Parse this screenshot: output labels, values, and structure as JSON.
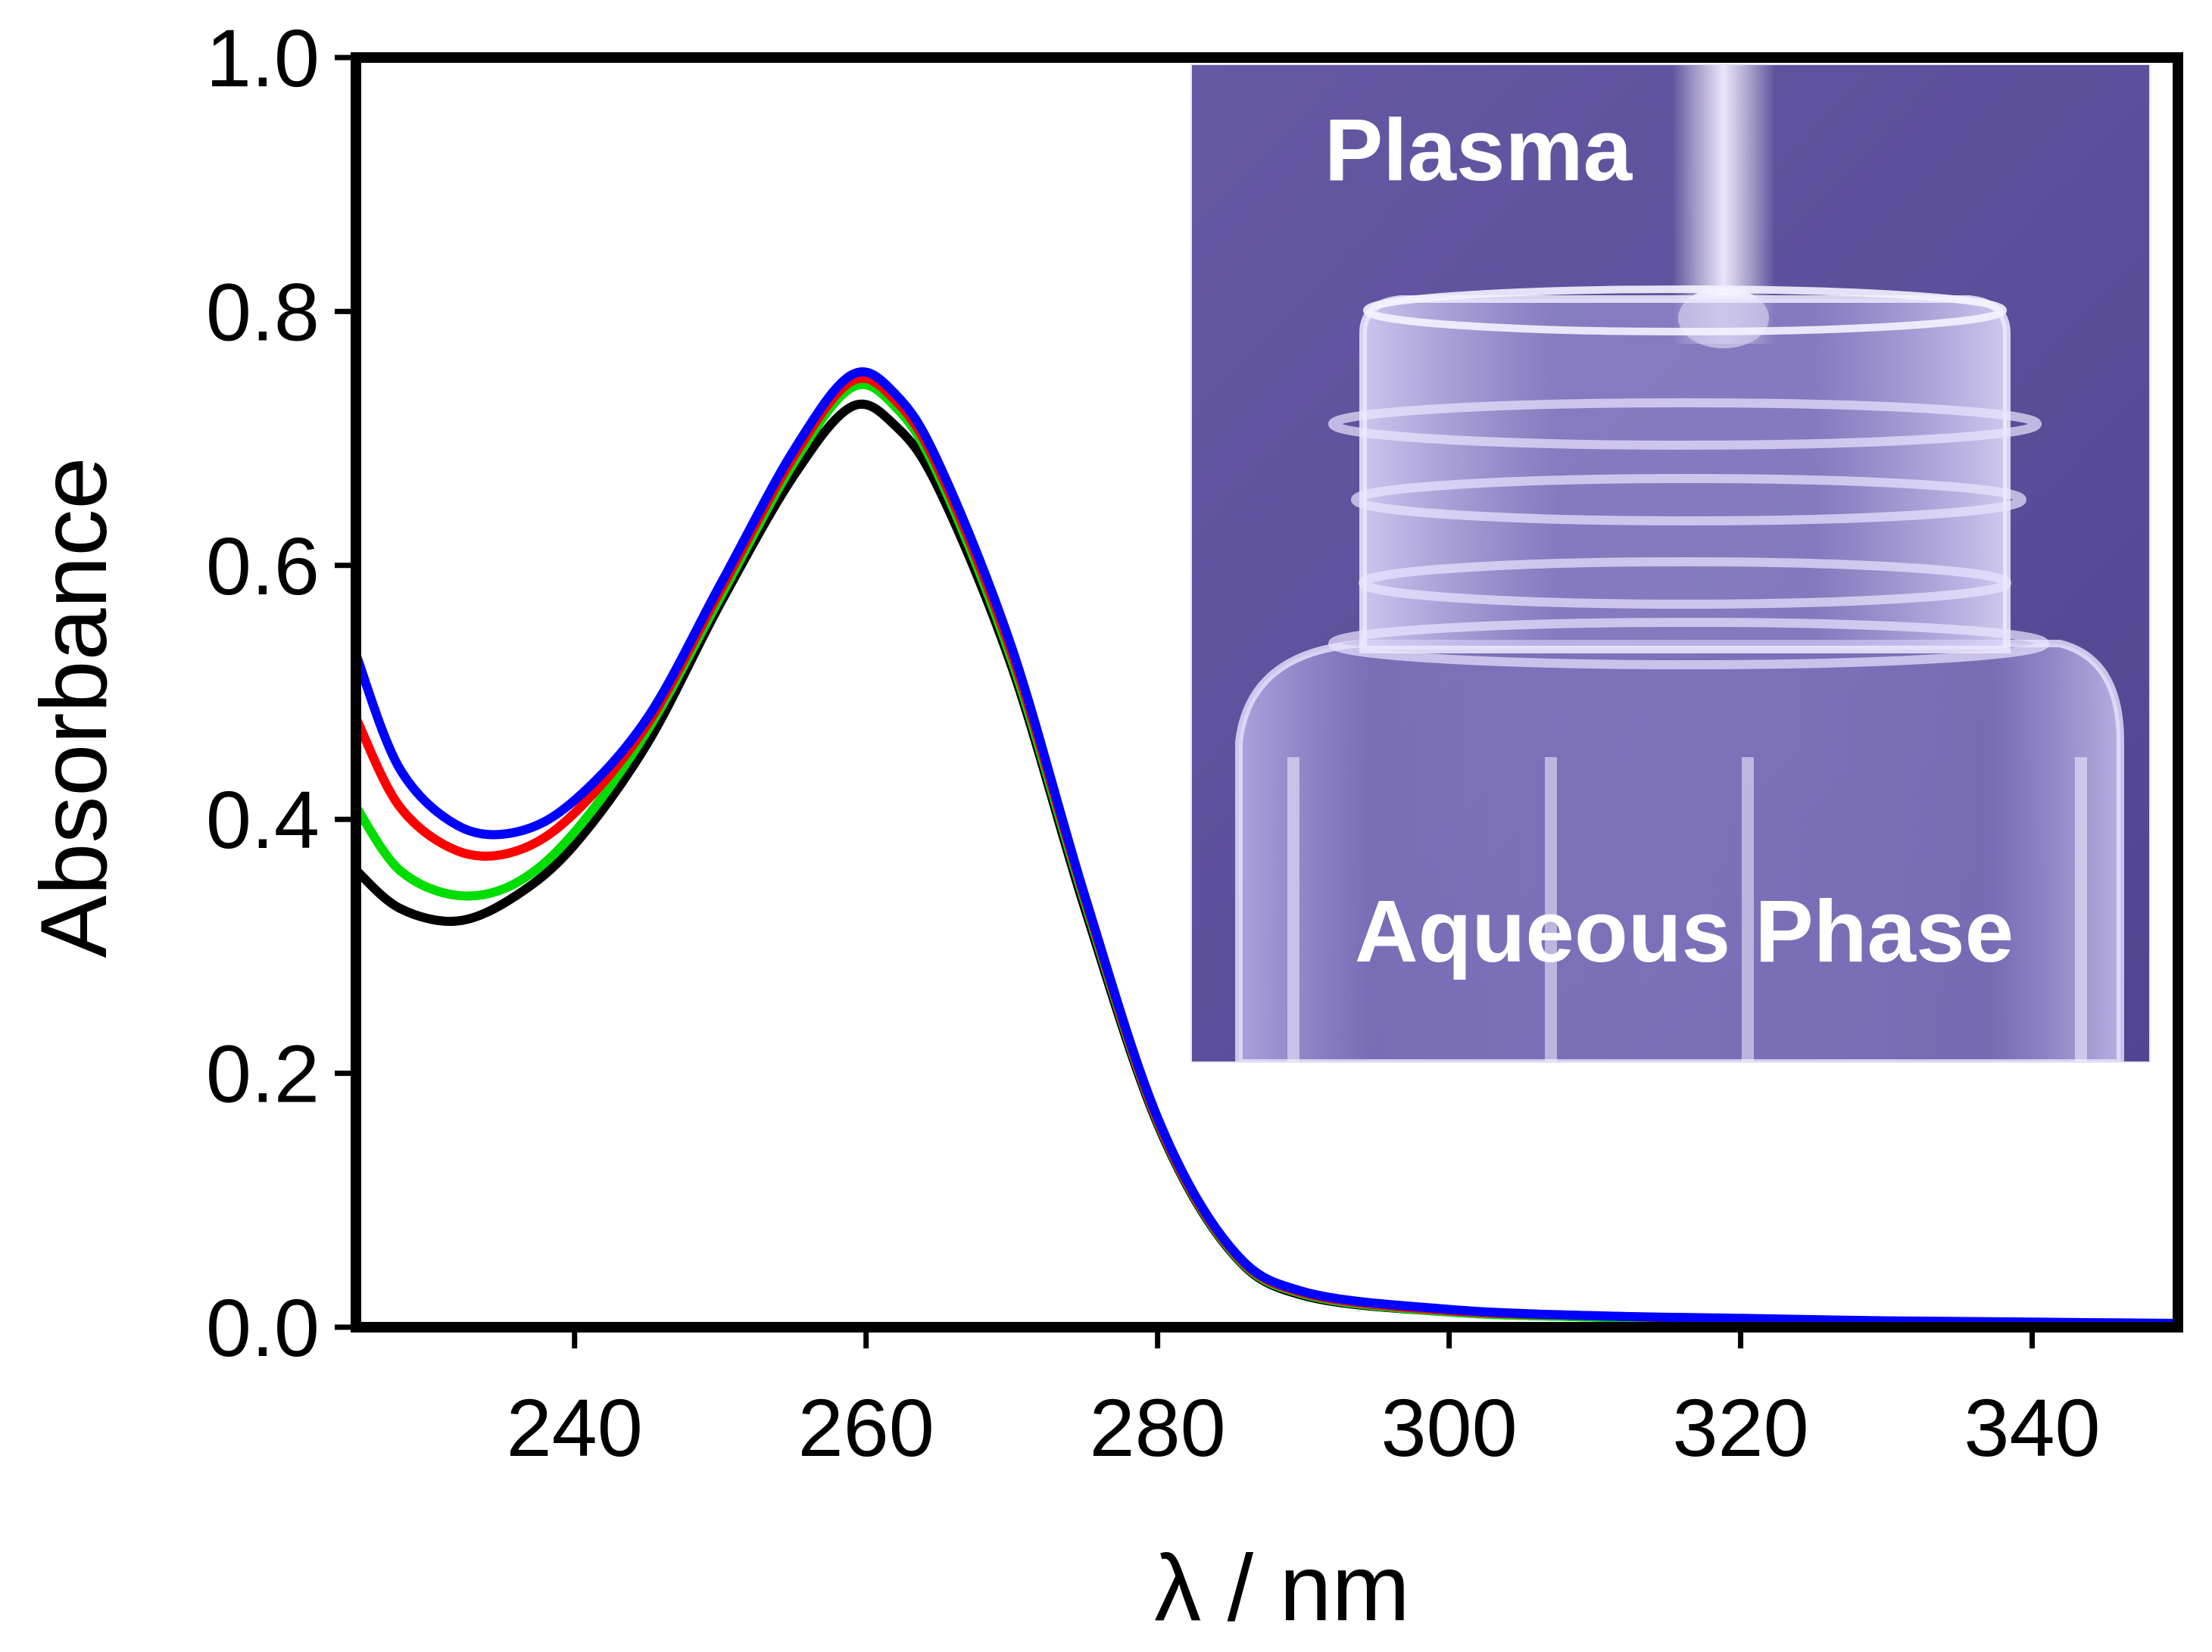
{
  "chart_data": {
    "type": "line",
    "title": "",
    "xlabel": "λ / nm",
    "ylabel": "Absorbance",
    "xlim": [
      225,
      350
    ],
    "ylim": [
      0.0,
      1.0
    ],
    "xticks": [
      {
        "value": 240,
        "label": "240"
      },
      {
        "value": 260,
        "label": "260"
      },
      {
        "value": 280,
        "label": "280"
      },
      {
        "value": 300,
        "label": "300"
      },
      {
        "value": 320,
        "label": "320"
      },
      {
        "value": 340,
        "label": "340"
      }
    ],
    "yticks": [
      {
        "value": 0.0,
        "label": "0.0"
      },
      {
        "value": 0.2,
        "label": "0.2"
      },
      {
        "value": 0.4,
        "label": "0.4"
      },
      {
        "value": 0.6,
        "label": "0.6"
      },
      {
        "value": 0.8,
        "label": "0.8"
      },
      {
        "value": 1.0,
        "label": "1.0"
      }
    ],
    "grid": false,
    "series": [
      {
        "name": "black",
        "color": "#000000",
        "x": [
          225,
          228,
          232,
          236,
          240,
          245,
          250,
          255,
          259,
          262,
          265,
          270,
          275,
          280,
          285,
          290,
          300,
          310,
          320,
          330,
          340,
          350
        ],
        "y": [
          0.36,
          0.33,
          0.32,
          0.34,
          0.38,
          0.46,
          0.57,
          0.67,
          0.725,
          0.71,
          0.66,
          0.52,
          0.33,
          0.16,
          0.06,
          0.025,
          0.012,
          0.008,
          0.006,
          0.004,
          0.003,
          0.002
        ]
      },
      {
        "name": "green",
        "color": "#00dd00",
        "x": [
          225,
          228,
          232,
          236,
          240,
          245,
          250,
          255,
          259,
          262,
          265,
          270,
          275,
          280,
          285,
          290,
          300,
          310,
          320,
          330,
          340,
          350
        ],
        "y": [
          0.41,
          0.36,
          0.34,
          0.35,
          0.39,
          0.47,
          0.575,
          0.68,
          0.74,
          0.725,
          0.67,
          0.525,
          0.335,
          0.162,
          0.061,
          0.026,
          0.012,
          0.008,
          0.006,
          0.004,
          0.003,
          0.002
        ]
      },
      {
        "name": "red",
        "color": "#ff0000",
        "x": [
          225,
          228,
          232,
          236,
          240,
          245,
          250,
          255,
          259,
          262,
          265,
          270,
          275,
          280,
          285,
          290,
          300,
          310,
          320,
          330,
          340,
          350
        ],
        "y": [
          0.48,
          0.41,
          0.375,
          0.375,
          0.405,
          0.475,
          0.58,
          0.685,
          0.745,
          0.73,
          0.675,
          0.53,
          0.338,
          0.163,
          0.062,
          0.027,
          0.013,
          0.009,
          0.006,
          0.004,
          0.003,
          0.002
        ]
      },
      {
        "name": "blue",
        "color": "#0000ff",
        "x": [
          225,
          228,
          232,
          236,
          240,
          245,
          250,
          255,
          259,
          262,
          265,
          270,
          275,
          280,
          285,
          290,
          300,
          310,
          320,
          330,
          340,
          350
        ],
        "y": [
          0.53,
          0.44,
          0.395,
          0.39,
          0.415,
          0.48,
          0.585,
          0.69,
          0.75,
          0.735,
          0.68,
          0.535,
          0.34,
          0.165,
          0.063,
          0.028,
          0.014,
          0.009,
          0.007,
          0.005,
          0.004,
          0.003
        ]
      }
    ],
    "inset": {
      "top_label": "Plasma",
      "bottom_label": "Aqueous Phase",
      "background_color": "#5d4f98",
      "label_color": "#ffffff"
    }
  }
}
